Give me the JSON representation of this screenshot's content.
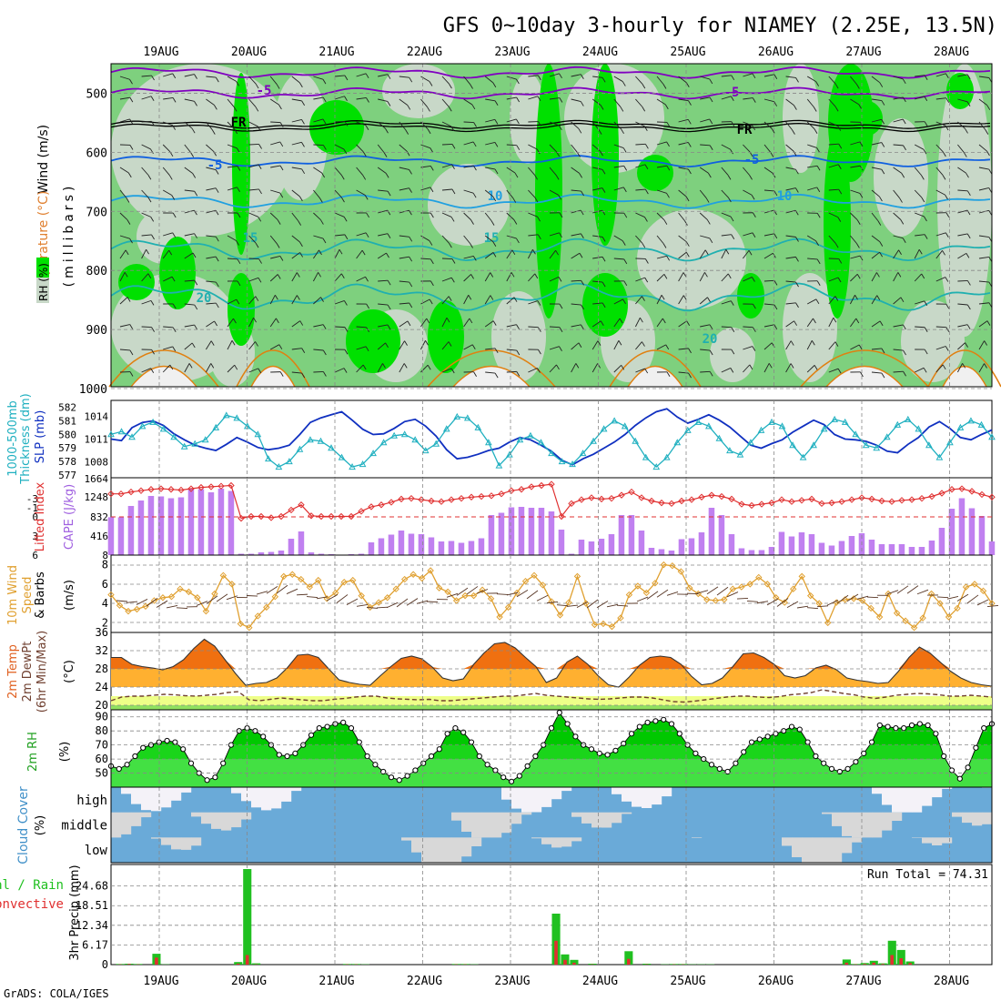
{
  "title": "GFS 0~10day 3-hourly for NIAMEY (2.25E, 13.5N)",
  "footer": "GrADS: COLA/IGES",
  "date_labels": [
    "19AUG",
    "20AUG",
    "21AUG",
    "22AUG",
    "23AUG",
    "24AUG",
    "25AUG",
    "26AUG",
    "27AUG",
    "28AUG"
  ],
  "colors": {
    "rh_light": "#c8d8c8",
    "rh_mid": "#7ed07e",
    "rh_high": "#00e000",
    "temp_purple": "#8000c0",
    "temp_blue": "#1060e0",
    "temp_cyan": "#20a0e0",
    "temp_teal": "#20b0b0",
    "temp_orange": "#e08010",
    "slp_line": "#1030c0",
    "thick_line": "#20b0c0",
    "cape_bar": "#c080f0",
    "li_line": "#e03030",
    "wind_line": "#e0a030",
    "cloud_blue": "#6aaad8",
    "cloud_gray": "#d8d8d8",
    "precip_total": "#20c020",
    "precip_conv": "#e03030"
  },
  "panel_labels": {
    "p1_wind": "Wind (m/s)",
    "p1_temp": "Temperature (°C)",
    "p1_rh": "RH (%)",
    "p1_units": "(millibars)",
    "p2_thick_a": "1000-500mb",
    "p2_thick_b": "Thickness (dm)",
    "p2_slp": "SLP (mb)",
    "p3_li": "Lifted Index",
    "p3_cape": "CAPE (J/kg)",
    "p4_a": "10m Wind",
    "p4_b": "Speed",
    "p4_c": "& Barbs",
    "p4_units": "(m/s)",
    "p5_a": "2m Temp",
    "p5_b": "2m DewPt",
    "p5_c": "(6hr Min/Max)",
    "p5_units": "(°C)",
    "p6_a": "2m RH",
    "p6_units": "(%)",
    "p7_a": "Cloud Cover",
    "p7_units": "(%)",
    "p7_high": "high",
    "p7_middle": "middle",
    "p7_low": "low",
    "p8_a": "Total / Rain",
    "p8_b": "Convective",
    "p8_units": "3hr Precip (mm)",
    "run_total": "Run Total = 74.31"
  },
  "chart_data": [
    {
      "type": "heatmap",
      "panel": "vertical profile",
      "ylabel": "(millibars)",
      "yticks": [
        "500",
        "600",
        "700",
        "800",
        "900",
        "1000"
      ],
      "ylim": [
        1000,
        450
      ],
      "contour_labels": [
        "-5",
        "FR",
        "-5",
        "10",
        "15",
        "20",
        "-5",
        "FR",
        "-5",
        "10",
        "15",
        "20"
      ],
      "isotherms_mb": {
        "-5a": 500,
        "FR": 555,
        "-5b": 615,
        "10": 680,
        "15": 760,
        "20": 840
      }
    },
    {
      "type": "line",
      "panel": "thickness and SLP",
      "thickness_yticks": [
        "582",
        "581",
        "580",
        "579",
        "578",
        "577"
      ],
      "slp_yticks": [
        "1014",
        "1011",
        "1008"
      ],
      "thickness_dm": [
        580.0,
        580.2,
        579.8,
        580.6,
        580.9,
        580.4,
        579.8,
        579.1,
        579.3,
        579.6,
        580.5,
        581.4,
        581.2,
        580.6,
        580.0,
        578.2,
        577.6,
        578.0,
        578.9,
        579.6,
        579.5,
        579.0,
        578.3,
        577.6,
        577.8,
        578.6,
        579.4,
        579.9,
        580.0,
        579.6,
        578.8,
        579.3,
        580.4,
        581.3,
        581.2,
        580.5,
        579.4,
        577.7,
        578.5,
        579.6,
        579.9,
        579.4,
        578.6,
        578.0,
        577.8,
        578.6,
        579.5,
        580.4,
        581.0,
        580.6,
        579.5,
        578.3,
        577.6,
        578.3,
        579.4,
        580.3,
        580.9,
        580.6,
        579.7,
        578.8,
        578.5,
        579.4,
        580.3,
        580.9,
        580.6,
        579.2,
        578.3,
        579.2,
        580.4,
        581.1,
        580.9,
        580.0,
        579.2,
        579.0,
        579.8,
        580.7,
        581.1,
        580.4,
        579.2,
        578.3,
        579.4,
        580.5,
        581.0,
        580.7,
        579.8
      ],
      "slp_mb": [
        1011.0,
        1010.8,
        1012.5,
        1013.2,
        1013.4,
        1012.8,
        1011.7,
        1010.9,
        1010.2,
        1009.8,
        1009.5,
        1010.3,
        1011.2,
        1010.6,
        1009.9,
        1009.6,
        1009.8,
        1010.2,
        1011.6,
        1013.2,
        1013.8,
        1014.2,
        1014.6,
        1013.5,
        1012.3,
        1011.6,
        1011.7,
        1012.4,
        1013.3,
        1013.6,
        1012.7,
        1011.4,
        1009.6,
        1008.4,
        1008.6,
        1009.0,
        1009.5,
        1009.8,
        1010.6,
        1011.2,
        1010.9,
        1010.2,
        1009.4,
        1008.2,
        1007.6,
        1008.4,
        1009.0,
        1009.8,
        1010.6,
        1011.6,
        1012.8,
        1013.8,
        1014.6,
        1015.0,
        1013.9,
        1013.1,
        1013.6,
        1014.2,
        1013.5,
        1012.6,
        1011.4,
        1010.2,
        1009.8,
        1010.4,
        1010.9,
        1011.9,
        1012.7,
        1013.5,
        1012.9,
        1011.6,
        1011.0,
        1010.9,
        1010.7,
        1010.2,
        1009.4,
        1009.2,
        1010.3,
        1011.2,
        1012.6,
        1013.3,
        1012.4,
        1011.2,
        1010.9,
        1011.6,
        1012.2
      ]
    },
    {
      "type": "bar",
      "panel": "CAPE and Lifted Index",
      "li_yticks": [
        "-3",
        "-1",
        "0",
        "3",
        "6"
      ],
      "cape_yticks": [
        "1664",
        "1248",
        "832",
        "416",
        "8"
      ],
      "cape_jkg": [
        832,
        832,
        1080,
        1200,
        1300,
        1290,
        1250,
        1270,
        1460,
        1450,
        1380,
        1460,
        1410,
        30,
        30,
        60,
        70,
        100,
        360,
        520,
        60,
        30,
        20,
        10,
        20,
        30,
        280,
        370,
        450,
        540,
        470,
        460,
        390,
        300,
        310,
        270,
        310,
        370,
        880,
        930,
        1050,
        1060,
        1040,
        1040,
        960,
        560,
        30,
        340,
        300,
        360,
        460,
        880,
        880,
        540,
        160,
        130,
        100,
        350,
        370,
        500,
        1040,
        880,
        460,
        150,
        110,
        110,
        180,
        510,
        410,
        500,
        460,
        270,
        210,
        310,
        420,
        480,
        340,
        240,
        240,
        240,
        180,
        180,
        320,
        600,
        1020,
        1250,
        1030,
        860,
        300
      ],
      "lifted_index": [
        -3.5,
        -3.5,
        -3.8,
        -4.0,
        -4.2,
        -4.3,
        -4.2,
        -4.1,
        -4.3,
        -4.5,
        -4.6,
        -4.7,
        -4.8,
        0.3,
        0.0,
        0.0,
        0.2,
        0.0,
        -1.0,
        -1.8,
        -0.1,
        0.0,
        0.0,
        0.0,
        0.0,
        -0.8,
        -1.5,
        -1.8,
        -2.2,
        -2.7,
        -2.8,
        -2.6,
        -2.4,
        -2.3,
        -2.6,
        -2.8,
        -3.0,
        -3.1,
        -3.2,
        -3.5,
        -4.0,
        -4.2,
        -4.6,
        -4.8,
        -5.0,
        0.0,
        -2.0,
        -2.6,
        -2.9,
        -2.7,
        -2.8,
        -3.3,
        -3.8,
        -2.9,
        -2.4,
        -2.1,
        -2.0,
        -2.4,
        -2.6,
        -3.0,
        -3.3,
        -3.1,
        -2.7,
        -1.9,
        -1.7,
        -1.9,
        -2.1,
        -2.6,
        -2.3,
        -2.5,
        -2.7,
        -2.0,
        -2.1,
        -2.3,
        -2.6,
        -2.9,
        -2.7,
        -2.4,
        -2.3,
        -2.5,
        -2.6,
        -2.8,
        -3.1,
        -3.6,
        -4.2,
        -4.3,
        -3.9,
        -3.4,
        -3.0
      ]
    },
    {
      "type": "line",
      "panel": "10m Wind Speed",
      "yticks": [
        "8",
        "6",
        "4",
        "2"
      ],
      "ylim": [
        1,
        9
      ],
      "wind_speed_ms": [
        4.9,
        3.8,
        3.2,
        3.4,
        3.7,
        4.3,
        4.6,
        4.7,
        5.5,
        5.2,
        4.6,
        3.2,
        5.0,
        6.9,
        6.0,
        1.9,
        1.5,
        2.7,
        3.6,
        4.7,
        6.8,
        7.0,
        6.5,
        5.7,
        6.4,
        4.5,
        5.1,
        6.2,
        6.4,
        4.8,
        3.6,
        4.1,
        4.6,
        5.5,
        6.5,
        7.0,
        6.6,
        7.4,
        5.6,
        5.2,
        4.3,
        4.8,
        4.8,
        5.4,
        4.5,
        2.6,
        3.6,
        5.1,
        6.3,
        6.9,
        5.9,
        4.2,
        2.8,
        4.1,
        6.8,
        4.0,
        1.8,
        1.9,
        1.6,
        2.5,
        4.9,
        5.8,
        5.1,
        6.1,
        8.0,
        7.9,
        7.3,
        5.6,
        5.0,
        4.4,
        4.3,
        4.4,
        5.5,
        5.7,
        6.0,
        6.7,
        6.0,
        4.6,
        4.1,
        5.5,
        6.8,
        4.8,
        4.0,
        2.0,
        4.1,
        4.4,
        4.5,
        4.3,
        3.5,
        2.6,
        5.0,
        3.0,
        2.2,
        1.5,
        2.5,
        5.0,
        4.0,
        2.6,
        3.5,
        5.7,
        6.0,
        5.3,
        4.0
      ]
    },
    {
      "type": "area",
      "panel": "2m Temp and DewPt",
      "yticks": [
        "36",
        "32",
        "28",
        "24",
        "20"
      ],
      "ylim": [
        19,
        36
      ],
      "temp_c": [
        30.5,
        30.5,
        29.0,
        28.5,
        28.2,
        27.8,
        28.5,
        30.0,
        32.5,
        34.5,
        33.0,
        30.0,
        27.0,
        24.4,
        24.8,
        25.0,
        26.0,
        28.2,
        31.0,
        31.2,
        30.5,
        28.0,
        25.6,
        25.0,
        24.6,
        24.4,
        26.5,
        28.5,
        30.3,
        30.8,
        30.2,
        28.4,
        26.0,
        25.4,
        25.8,
        29.0,
        31.5,
        33.5,
        33.8,
        32.6,
        30.5,
        28.5,
        25.0,
        26.0,
        29.5,
        30.8,
        29.0,
        26.5,
        24.5,
        24.0,
        26.2,
        28.8,
        30.5,
        30.8,
        30.5,
        29.0,
        26.4,
        24.5,
        24.8,
        26.0,
        28.5,
        31.3,
        31.5,
        30.5,
        29.0,
        26.5,
        26.0,
        26.5,
        28.2,
        28.8,
        27.8,
        26.0,
        25.5,
        25.2,
        24.8,
        25.0,
        27.5,
        30.5,
        32.8,
        31.5,
        29.5,
        27.5,
        26.0,
        25.0,
        24.5,
        24.2
      ],
      "dewpt_c": [
        21.0,
        21.8,
        22.0,
        22.0,
        22.2,
        22.4,
        22.3,
        22.1,
        22.0,
        22.2,
        22.4,
        22.8,
        23.0,
        21.2,
        21.0,
        21.3,
        21.6,
        21.4,
        21.2,
        21.0,
        21.0,
        21.3,
        21.5,
        21.8,
        22.0,
        22.0,
        21.6,
        21.4,
        21.3,
        21.2,
        21.3,
        21.0,
        21.0,
        21.2,
        21.4,
        21.6,
        21.8,
        22.0,
        22.0,
        22.3,
        22.6,
        22.2,
        22.0,
        21.8,
        21.6,
        21.4,
        21.3,
        21.4,
        21.6,
        21.8,
        21.8,
        21.6,
        21.2,
        20.8,
        20.7,
        20.9,
        21.2,
        21.5,
        21.8,
        22.0,
        22.0,
        21.8,
        21.7,
        21.9,
        22.3,
        22.5,
        22.8,
        23.4,
        23.0,
        22.6,
        22.3,
        21.8,
        21.5,
        21.8,
        22.2,
        22.4,
        22.6,
        22.5,
        22.3,
        22.0,
        22.0,
        22.2,
        22.0,
        21.8
      ]
    },
    {
      "type": "area",
      "panel": "2m RH",
      "yticks": [
        "90",
        "80",
        "70",
        "60",
        "50"
      ],
      "ylim": [
        40,
        95
      ],
      "rh_pct": [
        55,
        53,
        56,
        62,
        68,
        70,
        72,
        73,
        72,
        67,
        57,
        50,
        45,
        47,
        57,
        70,
        80,
        82,
        80,
        76,
        70,
        63,
        62,
        64,
        70,
        77,
        82,
        83,
        85,
        86,
        82,
        72,
        62,
        56,
        51,
        47,
        45,
        48,
        52,
        57,
        62,
        67,
        78,
        82,
        79,
        72,
        62,
        56,
        52,
        47,
        44,
        48,
        55,
        62,
        70,
        82,
        93,
        85,
        76,
        70,
        67,
        64,
        63,
        66,
        71,
        78,
        83,
        86,
        87,
        88,
        85,
        78,
        70,
        64,
        60,
        56,
        53,
        51,
        57,
        65,
        72,
        74,
        76,
        78,
        80,
        83,
        81,
        72,
        62,
        57,
        53,
        51,
        53,
        58,
        64,
        72,
        84,
        83,
        82,
        82,
        84,
        85,
        84,
        78,
        62,
        52,
        46,
        54,
        68,
        82,
        85
      ]
    },
    {
      "type": "heatmap",
      "panel": "Cloud Cover",
      "row_labels": [
        "high",
        "middle",
        "low"
      ]
    },
    {
      "type": "bar",
      "panel": "3hr Precip",
      "yticks": [
        "24.68",
        "18.51",
        "12.34",
        "6.17",
        "0"
      ],
      "ylim": [
        0,
        30
      ],
      "run_total": 74.31,
      "total_mm": [
        0.2,
        0.3,
        0.2,
        0.0,
        3.4,
        0.1,
        0.0,
        0.0,
        0.0,
        0.0,
        0.0,
        0.0,
        0.0,
        0.8,
        30.0,
        0.4,
        0.0,
        0.0,
        0.0,
        0.0,
        0.0,
        0.0,
        0.0,
        0.0,
        0.0,
        0.2,
        0.2,
        0.1,
        0.0,
        0.0,
        0.0,
        0.0,
        0.0,
        0.0,
        0.0,
        0.0,
        0.0,
        0.2,
        0.2,
        0.1,
        0.0,
        0.0,
        0.0,
        0.0,
        0.0,
        0.0,
        0.0,
        0.0,
        16.0,
        3.2,
        1.5,
        0.0,
        0.3,
        0.0,
        0.0,
        0.0,
        4.2,
        0.0,
        0.3,
        0.0,
        0.1,
        0.2,
        0.2,
        0.1,
        0.1,
        0.1,
        0.0,
        0.0,
        0.0,
        0.0,
        0.0,
        0.0,
        0.0,
        0.0,
        0.0,
        0.0,
        0.0,
        0.0,
        0.0,
        0.0,
        1.6,
        0.2,
        0.5,
        1.2,
        0.4,
        7.5,
        4.6,
        1.0,
        0.0,
        0.0,
        0.0,
        0.0,
        0.0,
        0.0,
        0.0,
        0.0
      ],
      "convective_mm": [
        0.1,
        0.2,
        0.1,
        0.0,
        2.2,
        0.0,
        0.0,
        0.0,
        0.0,
        0.0,
        0.0,
        0.0,
        0.0,
        0.3,
        3.0,
        0.1,
        0.0,
        0.0,
        0.0,
        0.0,
        0.0,
        0.0,
        0.0,
        0.0,
        0.0,
        0.1,
        0.1,
        0.0,
        0.0,
        0.0,
        0.0,
        0.0,
        0.0,
        0.0,
        0.0,
        0.0,
        0.0,
        0.1,
        0.1,
        0.0,
        0.0,
        0.0,
        0.0,
        0.0,
        0.0,
        0.0,
        0.0,
        0.0,
        7.5,
        1.5,
        0.6,
        0.0,
        0.1,
        0.0,
        0.0,
        0.0,
        1.8,
        0.0,
        0.1,
        0.0,
        0.0,
        0.1,
        0.1,
        0.0,
        0.0,
        0.0,
        0.0,
        0.0,
        0.0,
        0.0,
        0.0,
        0.0,
        0.0,
        0.0,
        0.0,
        0.0,
        0.0,
        0.0,
        0.0,
        0.0,
        0.6,
        0.1,
        0.2,
        0.6,
        0.2,
        3.0,
        2.0,
        0.5,
        0.0,
        0.0,
        0.0,
        0.0,
        0.0,
        0.0,
        0.0,
        0.0
      ]
    }
  ]
}
